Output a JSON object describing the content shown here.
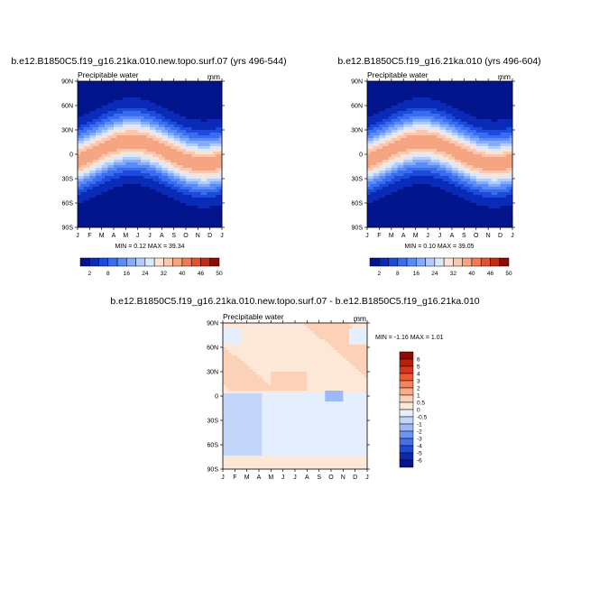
{
  "chart_data": [
    {
      "type": "heatmap",
      "title": "b.e12.B1850C5.f19_g16.21ka.010.new.topo.surf.07 (yrs 496-544)",
      "subtitle": "Precipitable water",
      "units": "mm",
      "x_ticks": [
        "J",
        "F",
        "M",
        "A",
        "M",
        "J",
        "J",
        "A",
        "S",
        "O",
        "N",
        "D",
        "J"
      ],
      "y_ticks": [
        "90N",
        "60N",
        "30N",
        "0",
        "30S",
        "60S",
        "90S"
      ],
      "stats": "MIN =   0.12 MAX =  39.34",
      "min": 0.12,
      "max": 39.34,
      "colorbar": {
        "labels": [
          "2",
          "8",
          "16",
          "24",
          "32",
          "40",
          "46",
          "50"
        ],
        "colors": [
          "#02158d",
          "#0a2bb8",
          "#1c4bdb",
          "#3a6cef",
          "#5a8cf8",
          "#85acfb",
          "#b2cdfc",
          "#d9e8fc",
          "#fbe4d6",
          "#f9c8ae",
          "#f5a582",
          "#ee7c55",
          "#e2542f",
          "#c42b15",
          "#8a0d05"
        ]
      }
    },
    {
      "type": "heatmap",
      "title": "b.e12.B1850C5.f19_g16.21ka.010 (yrs 496-604)",
      "subtitle": "Precipitable water",
      "units": "mm",
      "x_ticks": [
        "J",
        "F",
        "M",
        "A",
        "M",
        "J",
        "J",
        "A",
        "S",
        "O",
        "N",
        "D",
        "J"
      ],
      "y_ticks": [
        "90N",
        "60N",
        "30N",
        "0",
        "30S",
        "60S",
        "90S"
      ],
      "stats": "MIN =   0.10 MAX =  39.05",
      "min": 0.1,
      "max": 39.05,
      "colorbar": {
        "labels": [
          "2",
          "8",
          "16",
          "24",
          "32",
          "40",
          "46",
          "50"
        ],
        "colors": [
          "#02158d",
          "#0a2bb8",
          "#1c4bdb",
          "#3a6cef",
          "#5a8cf8",
          "#85acfb",
          "#b2cdfc",
          "#d9e8fc",
          "#fbe4d6",
          "#f9c8ae",
          "#f5a582",
          "#ee7c55",
          "#e2542f",
          "#c42b15",
          "#8a0d05"
        ]
      }
    },
    {
      "type": "heatmap",
      "title": "b.e12.B1850C5.f19_g16.21ka.010.new.topo.surf.07 - b.e12.B1850C5.f19_g16.21ka.010",
      "subtitle": "Precipitable water",
      "units": "mm",
      "x_ticks": [
        "J",
        "F",
        "M",
        "A",
        "M",
        "J",
        "J",
        "A",
        "S",
        "O",
        "N",
        "D",
        "J"
      ],
      "y_ticks": [
        "90N",
        "60N",
        "30N",
        "0",
        "30S",
        "60S",
        "90S"
      ],
      "stats": "MIN =  -1.16 MAX =   1.01",
      "min": -1.16,
      "max": 1.01,
      "colorbar": {
        "labels": [
          "6",
          "5",
          "4",
          "3",
          "2",
          "1",
          "0.5",
          "0",
          "-0.5",
          "-1",
          "-2",
          "-3",
          "-4",
          "-5",
          "-6"
        ],
        "colors": [
          "#8a0d05",
          "#b81e0c",
          "#d8341a",
          "#ec5a33",
          "#f5845c",
          "#f9ab88",
          "#fbd2b8",
          "#fde8d8",
          "#e4eefd",
          "#c3d6fa",
          "#9dbaf6",
          "#6f95ee",
          "#4570e3",
          "#1f4bd2",
          "#0a2ab0",
          "#02158d"
        ]
      }
    }
  ]
}
